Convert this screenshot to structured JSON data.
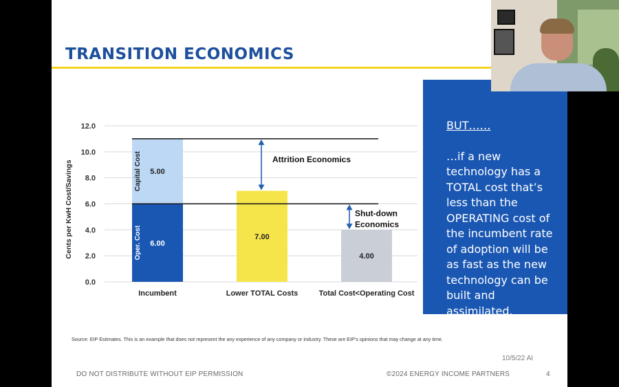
{
  "slide": {
    "title": "TRANSITION ECONOMICS",
    "footnote": "Source: EIP Estimates.  This is an example that does not represent the any experience of any company or industry. These are EIP’s opinions that may change at any time.",
    "date_stamp": "10/5/22 AI",
    "footer_left": "DO NOT DISTRIBUTE WITHOUT EIP PERMISSION",
    "footer_mid": "©2024 ENERGY INCOME PARTNERS",
    "page_number": "4"
  },
  "callout": {
    "heading": "BUT……",
    "body": "…if a new technology has a TOTAL cost that’s less than the OPERATING cost of the incumbent rate of adoption will be as fast as the new technology can be built and assimilated."
  },
  "colors": {
    "title": "#1d4f9c",
    "title_rule": "#f4d21f",
    "callout_bg": "#1a57b3",
    "capital_cost": "#bcd8f5",
    "operating_cost": "#1a57b3",
    "lower_total": "#f5e44a",
    "total_lt_operating": "#c9ced7",
    "arrow": "#1f5fb0"
  },
  "chart_data": {
    "type": "bar",
    "stacked": true,
    "ylabel": "Cents per KwH Cost/Savings",
    "ylim": [
      0,
      12
    ],
    "yticks": [
      "0.0",
      "2.0",
      "4.0",
      "6.0",
      "8.0",
      "10.0",
      "12.0"
    ],
    "categories": [
      "Incumbent",
      "Lower TOTAL Costs",
      "Total Cost<Operating Cost"
    ],
    "series": [
      {
        "name": "Operating cost",
        "values": [
          6.0,
          7.0,
          4.0
        ],
        "labels": [
          "6.00",
          "7.00",
          "4.00"
        ]
      },
      {
        "name": "Capital cost",
        "values": [
          5.0,
          0,
          0
        ],
        "labels": [
          "5.00",
          "",
          ""
        ]
      }
    ],
    "segment_labels": {
      "capital": "Capital  Cost",
      "operating": "Oper. Cost"
    },
    "reference_lines": [
      11.0,
      6.0
    ],
    "annotations": [
      {
        "text": "Attrition Economics",
        "from": 11.0,
        "to": 7.0
      },
      {
        "text": "Shut-down Economics",
        "line1": "Shut-down",
        "line2": "Economics",
        "from": 6.0,
        "to": 4.0
      }
    ],
    "grid": true
  }
}
